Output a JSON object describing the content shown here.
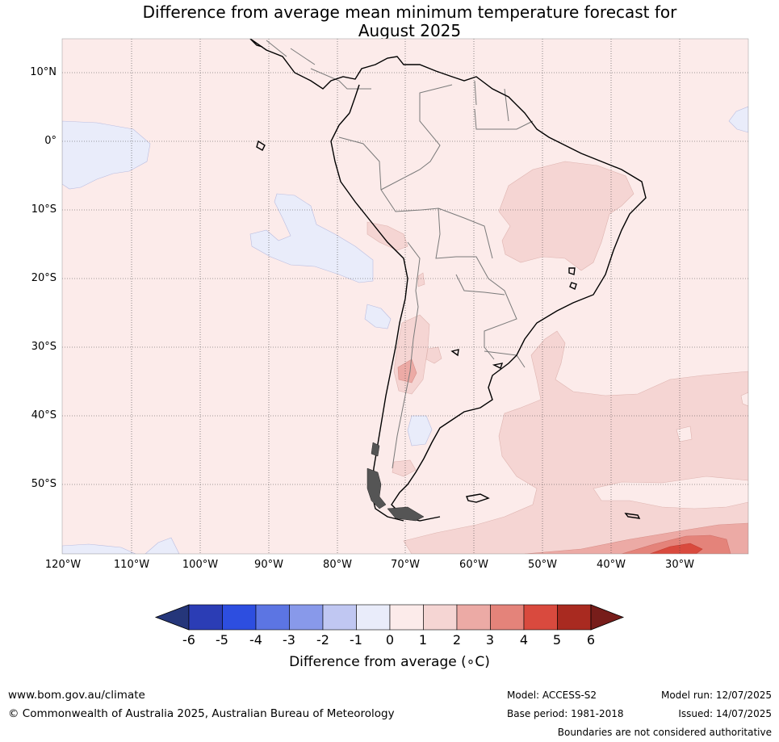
{
  "title_line1": "Difference from average mean minimum temperature forecast for",
  "title_line2": "August 2025",
  "lat_labels": [
    "10°N",
    "0°",
    "10°S",
    "20°S",
    "30°S",
    "40°S",
    "50°S"
  ],
  "lon_labels": [
    "120°W",
    "110°W",
    "100°W",
    "90°W",
    "80°W",
    "70°W",
    "60°W",
    "50°W",
    "40°W",
    "30°W"
  ],
  "colorbar": {
    "ticks": [
      "-6",
      "-5",
      "-4",
      "-3",
      "-2",
      "-1",
      "0",
      "1",
      "2",
      "3",
      "4",
      "5",
      "6"
    ],
    "colors": [
      "#25367a",
      "#2b3db5",
      "#2d4ee0",
      "#5c75e3",
      "#8899ea",
      "#c0c7f2",
      "#e9ecfa",
      "#fcebea",
      "#f5d5d3",
      "#ecaaa5",
      "#e4837a",
      "#d94a3e",
      "#a92a20",
      "#771d1a"
    ],
    "label": "Difference from average (∘C)"
  },
  "footer": {
    "website": "www.bom.gov.au/climate",
    "copyright": "© Commonwealth of Australia 2025, Australian Bureau of Meteorology",
    "model": "Model: ACCESS-S2",
    "base_period": "Base period: 1981-2018",
    "model_run": "Model run: 12/07/2025",
    "issued": "Issued: 14/07/2025",
    "disclaimer": "Boundaries are not considered authoritative"
  }
}
